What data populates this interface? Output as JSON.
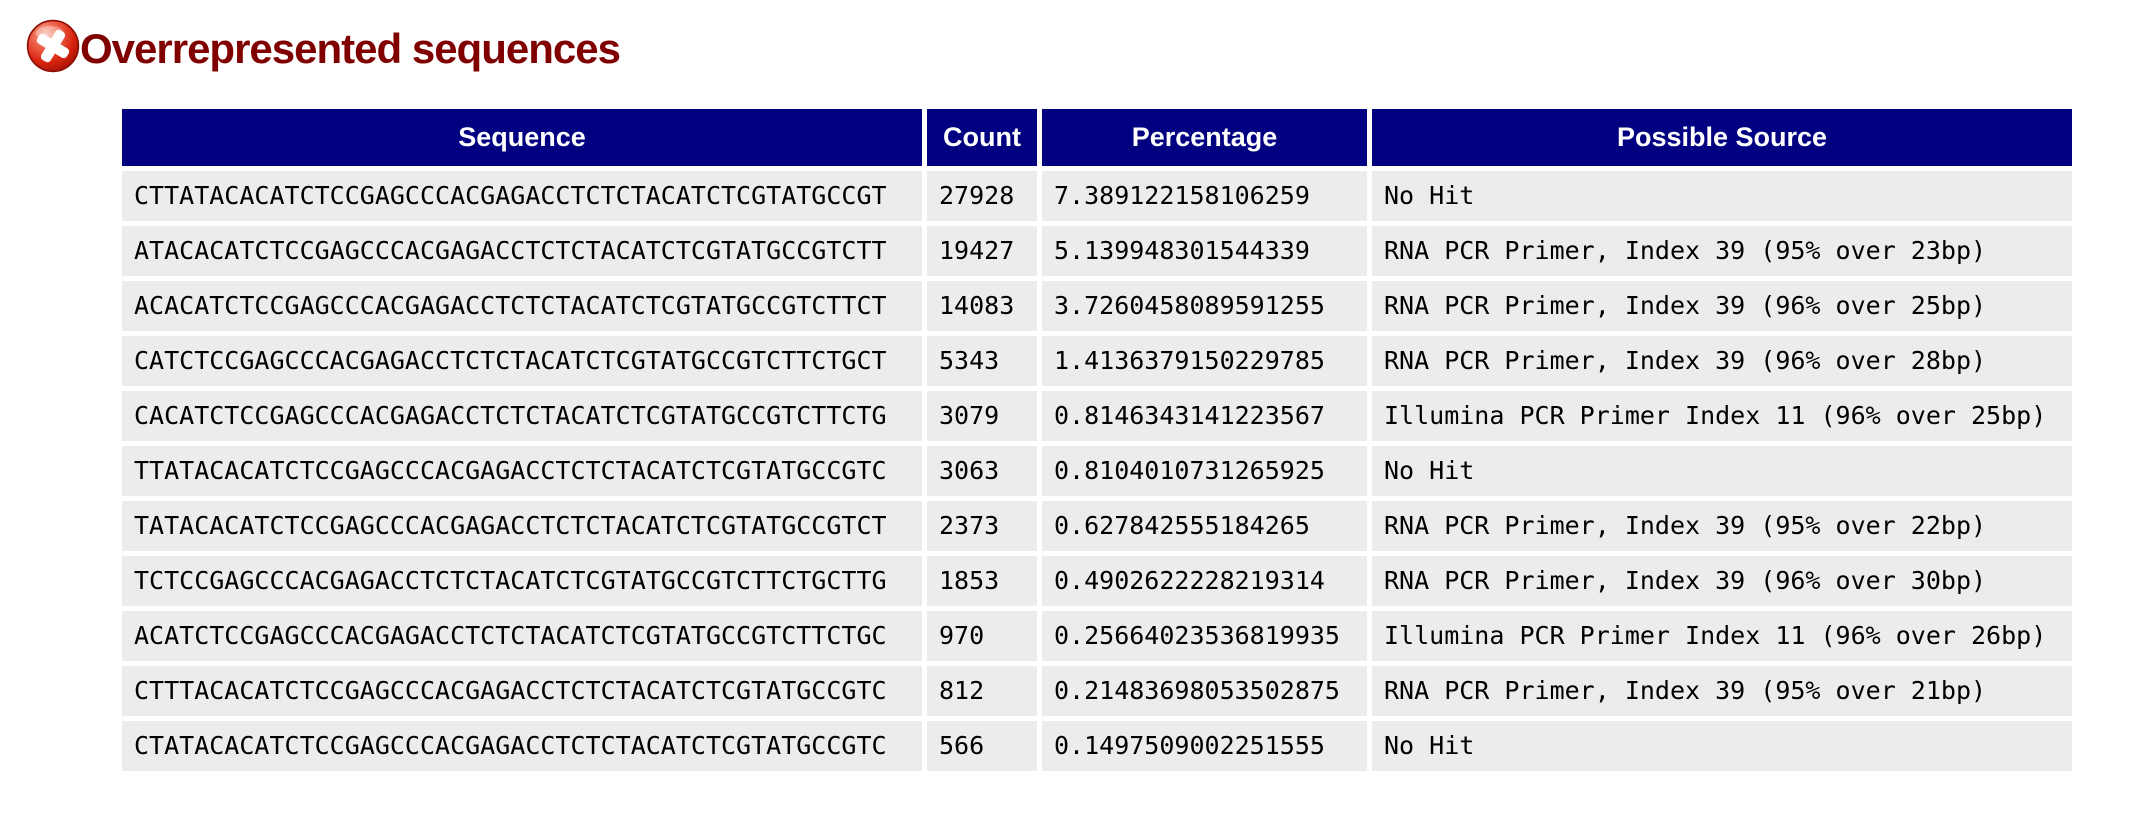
{
  "page": {
    "title": "Overrepresented sequences",
    "status": "fail",
    "status_icon": "fail-icon",
    "title_color": "#800000",
    "header_bg": "#000080",
    "row_bg": "#ececec"
  },
  "table": {
    "columns": [
      "Sequence",
      "Count",
      "Percentage",
      "Possible Source"
    ],
    "rows": [
      [
        "CTTATACACATCTCCGAGCCCACGAGACCTCTCTACATCTCGTATGCCGT",
        "27928",
        "7.389122158106259",
        "No Hit"
      ],
      [
        "ATACACATCTCCGAGCCCACGAGACCTCTCTACATCTCGTATGCCGTCTT",
        "19427",
        "5.139948301544339",
        "RNA PCR Primer, Index 39 (95% over 23bp)"
      ],
      [
        "ACACATCTCCGAGCCCACGAGACCTCTCTACATCTCGTATGCCGTCTTCT",
        "14083",
        "3.7260458089591255",
        "RNA PCR Primer, Index 39 (96% over 25bp)"
      ],
      [
        "CATCTCCGAGCCCACGAGACCTCTCTACATCTCGTATGCCGTCTTCTGCT",
        "5343",
        "1.4136379150229785",
        "RNA PCR Primer, Index 39 (96% over 28bp)"
      ],
      [
        "CACATCTCCGAGCCCACGAGACCTCTCTACATCTCGTATGCCGTCTTCTG",
        "3079",
        "0.8146343141223567",
        "Illumina PCR Primer Index 11 (96% over 25bp)"
      ],
      [
        "TTATACACATCTCCGAGCCCACGAGACCTCTCTACATCTCGTATGCCGTC",
        "3063",
        "0.8104010731265925",
        "No Hit"
      ],
      [
        "TATACACATCTCCGAGCCCACGAGACCTCTCTACATCTCGTATGCCGTCT",
        "2373",
        "0.627842555184265",
        "RNA PCR Primer, Index 39 (95% over 22bp)"
      ],
      [
        "TCTCCGAGCCCACGAGACCTCTCTACATCTCGTATGCCGTCTTCTGCTTG",
        "1853",
        "0.4902622228219314",
        "RNA PCR Primer, Index 39 (96% over 30bp)"
      ],
      [
        "ACATCTCCGAGCCCACGAGACCTCTCTACATCTCGTATGCCGTCTTCTGC",
        "970",
        "0.25664023536819935",
        "Illumina PCR Primer Index 11 (96% over 26bp)"
      ],
      [
        "CTTTACACATCTCCGAGCCCACGAGACCTCTCTACATCTCGTATGCCGTC",
        "812",
        "0.21483698053502875",
        "RNA PCR Primer, Index 39 (95% over 21bp)"
      ],
      [
        "CTATACACATCTCCGAGCCCACGAGACCTCTCTACATCTCGTATGCCGTC",
        "566",
        "0.1497509002251555",
        "No Hit"
      ]
    ]
  }
}
